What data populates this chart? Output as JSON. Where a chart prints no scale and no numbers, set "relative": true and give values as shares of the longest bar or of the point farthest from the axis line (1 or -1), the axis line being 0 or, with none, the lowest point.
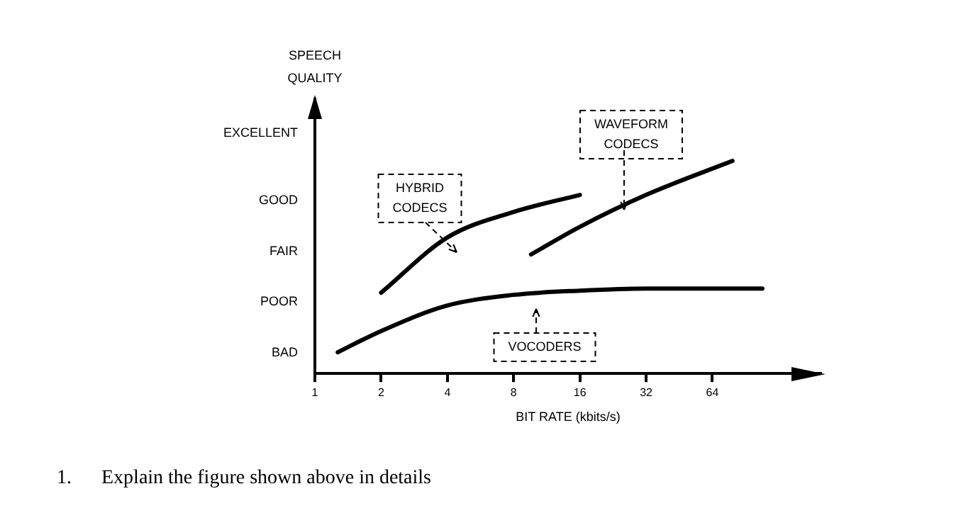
{
  "chart_data": {
    "type": "line",
    "xlabel": "BIT RATE (kbits/s)",
    "relative": true,
    "series": [
      {
        "color": "#000000",
        "x": [
          1.27,
          2,
          4,
          8,
          16,
          32,
          64,
          108
        ],
        "values": [
          0.1,
          0.2,
          0.32,
          0.37,
          0.39,
          0.4,
          0.4,
          0.4
        ]
      },
      {
        "color": "#000000",
        "x": [
          2,
          4,
          8,
          16
        ],
        "values": [
          0.38,
          0.64,
          0.76,
          0.84
        ]
      },
      {
        "color": "#000000",
        "x": [
          9.6,
          16,
          32,
          79
        ],
        "values": [
          0.56,
          0.69,
          0.84,
          1
        ]
      }
    ],
    "log": "x",
    "xlim": [
      1,
      200
    ],
    "xticks": [
      1,
      2,
      4,
      8,
      16,
      32,
      64
    ],
    "grid": false,
    "legend": false,
    "marker": "none",
    "line_style": "solid",
    "annotations": [
      "EXCELLENT",
      "GOOD",
      "FAIR",
      "POOR",
      "BAD",
      "HYBRID CODECS",
      "WAVEFORM CODECS",
      "VOCODERS",
      "SPEECH QUALITY",
      "1.      Explain the figure shown above in details"
    ]
  }
}
